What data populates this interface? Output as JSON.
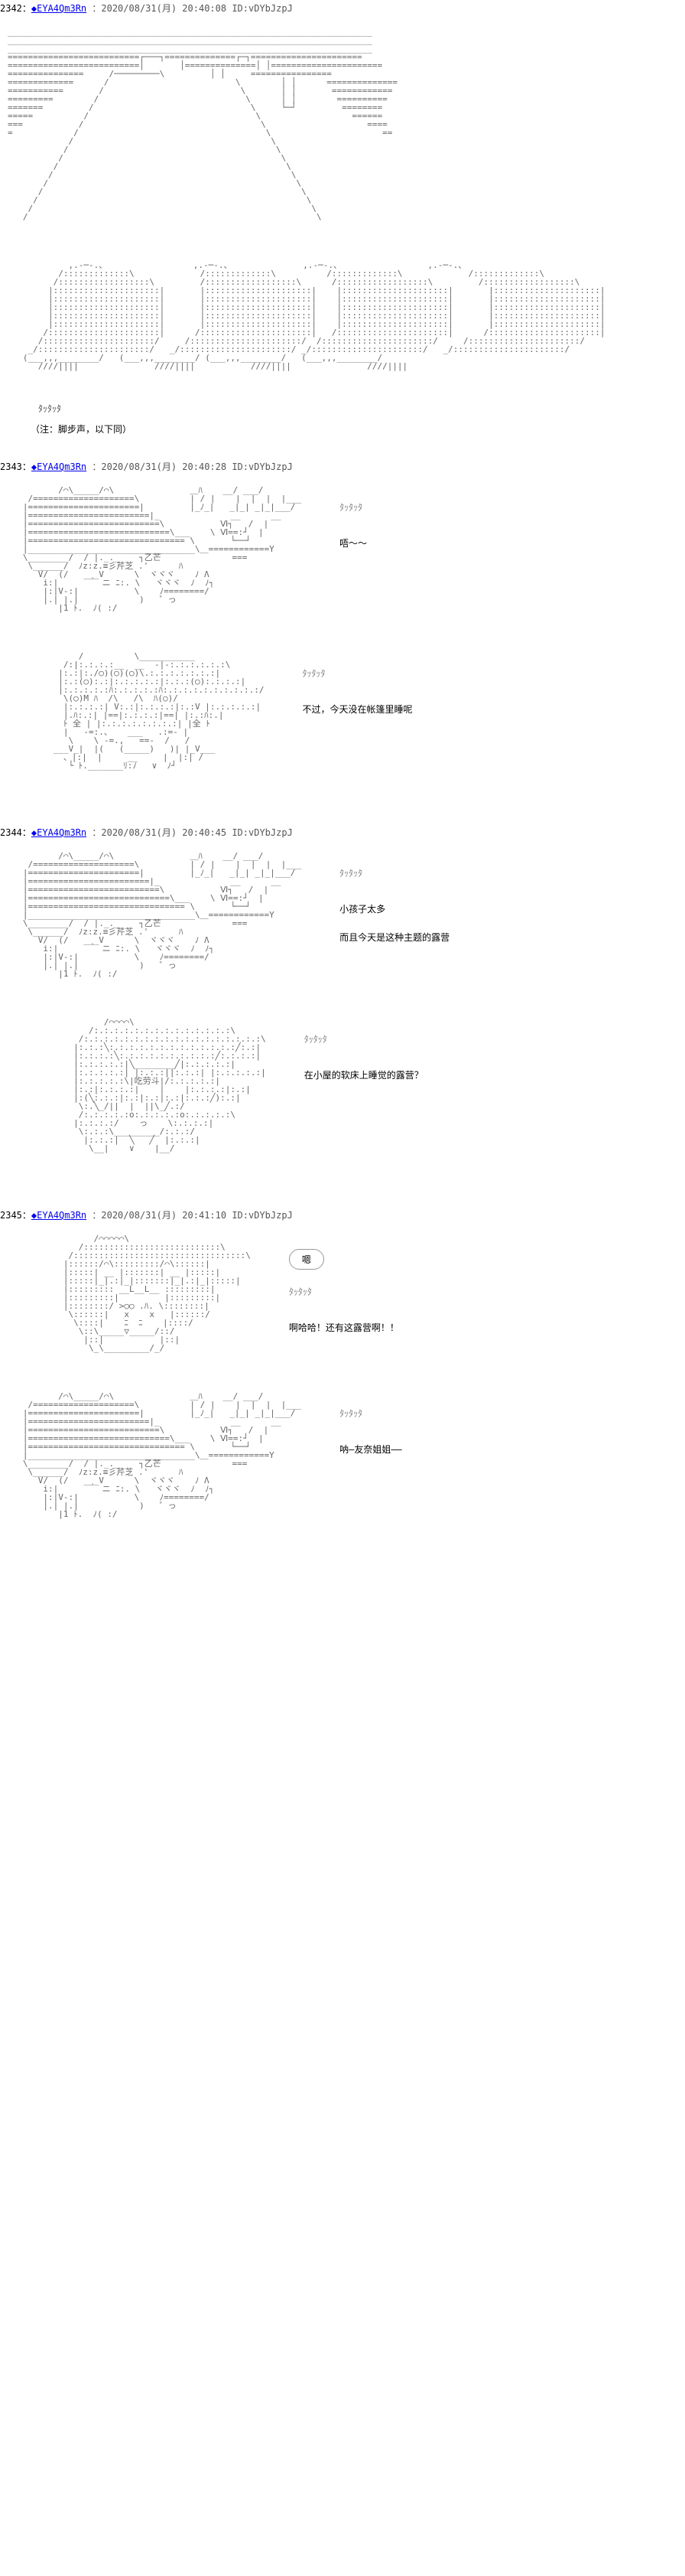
{
  "trip": "◆EYA4Qm3Rn",
  "posts": [
    {
      "num": "2342",
      "date": "2020/08/31(月) 20:40:08",
      "id": "ID:vDYbJzpJ",
      "panels": [
        {
          "aa_key": "hallway",
          "side": []
        },
        {
          "aa_key": "feet",
          "side": [],
          "sfx": "ﾀｯﾀｯﾀ",
          "note": "（注：脚步声，以下同）"
        }
      ]
    },
    {
      "num": "2343",
      "date": "2020/08/31(月) 20:40:28",
      "id": "ID:vDYbJzpJ",
      "panels": [
        {
          "aa_key": "yuna_side1",
          "side_sfx": "ﾀｯﾀｯﾀ",
          "side_lines": [
            "唔～～"
          ]
        },
        {
          "aa_key": "yuna_think",
          "side_sfx": "ﾀｯﾀｯﾀ",
          "side_lines": [
            "不过，今天没在帐篷里睡呢"
          ]
        }
      ]
    },
    {
      "num": "2344",
      "date": "2020/08/31(月) 20:40:45",
      "id": "ID:vDYbJzpJ",
      "panels": [
        {
          "aa_key": "yuna_side1",
          "side_sfx": "ﾀｯﾀｯﾀ",
          "side_lines": [
            "小孩子太多",
            "而且今天是这种主题的露营"
          ]
        },
        {
          "aa_key": "yuna_front",
          "side_sfx": "ﾀｯﾀｯﾀ",
          "side_lines": [
            "在小屋的软床上睡觉的露营？"
          ]
        }
      ]
    },
    {
      "num": "2345",
      "date": "2020/08/31(月) 20:41:10",
      "id": "ID:vDYbJzpJ",
      "panels": [
        {
          "aa_key": "yuna_happy",
          "side_bubble": "嗯",
          "side_sfx": "ﾀｯﾀｯﾀ",
          "side_lines": [
            "啊哈哈！还有这露营啊！！"
          ]
        },
        {
          "aa_key": "yuna_side1",
          "side_sfx": "ﾀｯﾀｯﾀ",
          "side_lines": [
            "呐―友奈姐姐――"
          ]
        }
      ]
    }
  ],
  "aa": {
    "hallway": "________________________________________________________________________\n________________________________________________________________________\n________________________________________________________________________\n==========================┌───┐==============┌─┐======================\n==========================│       │==============│ │======================\n===============     /─────────\\         │ │     ================\n=============      /                         \\        │ │      ==============\n===========       /                           \\       │ │       ============\n=========        /                             \\      │ │        ==========\n=======         /                               \\     └─┘         ========\n=====          /                                 \\                  ======\n===           /                                   \\                    ====\n=            /                                     \\                      ==\n            /                                       \\                       \n           /                                         \\                      \n          /                                           \\                     \n         /                                             \\                    \n        /                                               \\                   \n       /                                                 \\                  \n      /                                                   \\                 \n     /                                                     \\                \n    /                                                       \\               \n   /                                                         \\              ",
    "feet": "            ,.-─-.、                 ,.-─-.、              ,.-─-.、                 ,.-─-.、\n          /:::::::::::::\\             /:::::::::::::\\          /:::::::::::::\\             /:::::::::::::\\\n         /::::::::::::::::::\\         /::::::::::::::::::\\      /::::::::::::::::::\\         /::::::::::::::::::\\\n        |:::::::::::::::::::::|       |:::::::::::::::::::::|    |:::::::::::::::::::::|       |:::::::::::::::::::::|\n        |:::::::::::::::::::::|       |:::::::::::::::::::::|    |:::::::::::::::::::::|       |:::::::::::::::::::::|\n        |:::::::::::::::::::::|       |:::::::::::::::::::::|    |:::::::::::::::::::::|       |:::::::::::::::::::::|\n        |:::::::::::::::::::::|       |:::::::::::::::::::::|    |:::::::::::::::::::::|       |:::::::::::::::::::::|\n        |:::::::::::::::::::::|       |:::::::::::::::::::::|    |:::::::::::::::::::::|       |:::::::::::::::::::::|\n       /::::::::::::::::::::::|      /::::::::::::::::::::::|   /::::::::::::::::::::::|      /::::::::::::::::::::::|\n      /::::::::::::::::::::::/     /::::::::::::::::::::::/  /::::::::::::::::::::::/     /::::::::::::::::::::::/\n    _/::::::::::::::::::::::/   _/::::::::::::::::::::::/ _/::::::::::::::::::::::/   _/::::::::::::::::::::::/\n   (___,,,________/   (___,,,________/ (___,,,________/   (___,,,________/\n      ////||||               ////||||           ////||||               ////||||",
    "yuna_side1": "          /⌒\\_____/⌒\\               ＿ﾊ    __/ ___/\n    /====================\\          | / |    |  |  |  |___\n   |======================|         |_ﾉ_|   _|_| _|_|___/\n   |========================|_              __      __\n   |==========================\\           Ⅵ┐   /  |\n   |============================\\___    \\ Ⅵ==:┘  |\n   |=============================== \\       └──┘\n   |_________________________________\\＿============Y\n   \\________/  / |._._    ┐乙芒              ===\n    \\______/  ﾉz:z.≡彡芹芝 .'      ﾊ\n      V/  (/   ___V      \\  ヾヾヾ    ﾉ Λ\n       i:|      ｀ ニ ﾆ:. \\   ヾヾヾ  ﾉ  ﾉ┐\n       |:|V-:|           \\    ﾉ========/\n       |.| |.|            )   ゜っ\n          |1 ﾄ.  ﾉ( :/",
    "yuna_think": "              /          \\___________\n           /:|:.:.:.:__  __  -|-:.:.:.:.:.:\\\n          |:.:|:./○)(○)(○)\\.:.:.:.:.:.:.:|\n          |:.:(○):.:|:.:.:.:.:|:.:.:(○):.:.:.:|\n          |:.:.:.:.:ﾊ:.:.:.:.:ﾊ:.:.:.:.:.:.:.:.:.:/\n           \\(○)M ﾊ  /\\   /\\  ﾊ(○)/\n           |:.:.:.:| V:.:|:.:.:.:|:.:V |:.:.:.:.:|\n           |.ﾊ:.:| |==|:.:.:.:|==| |:.:ﾊ:.|\n           ﾄ 全 | |:.:.:.:.:.:.:.:| |全 ﾄ\n           |   -=:.、   ___   .:=- |\n            \\    \\ -=.,   ==-  /   /\n         ___V_|  |(   (_____)   )| |_V___\n           、|:|  |     __     |  |:| /\n            └ ﾄ._______ﾘ:ﾉ   ∨  ﾉ┘",
    "yuna_front": "                   /⌒⌒⌒⌒\\\n                /:.:.:.:.:.:.:.:.:.:.:.:.:.:\\\n              /:.:.:.:.:.:.:.:.:.:.:.:.:.:.:.:.:.:\\\n             |:.:.:╲:.:.:.:.:.:.:.:.:.:.:.:.:╱:.:|\n             |:.:.:.:╲:.:.:.:.:.:.:.:.:.:╱:.:.:.:|\n             |:.:.:.:.:|╲________╱|:.:.:.:.:|\n             |:.:.:.:.:| |:.:.:||:.:.:| |:.:.:.:.:|\n             |:.:.:.:.:\\|吃劳斗|/:.:.:.:.:|\n             |:.:|:.:.:.:|    |    |:.:.:.:|:.:|\n             |:(╲:.:.:|:.:|:.:|:.:|:.:.:╱):.:|\n              \\:.╲_/||  |  ||\\_╱.:/\n              /:.:.:.:.:o:.:.:.:.:o:.:.:.:.:\\\n             |:.:.:.:/    っ    \\:.:.:.:|\n              \\:.:.:\\_________/:.:.:/\n               |:.:.:|  ╲   ╱  |:.:.:|\n                \\__|    ∨    |__/",
    "yuna_happy": "                 /⌒⌒⌒⌒⌒\\\n              /:::::::::::::::::::::::::::\\\n            /::::::::::::::::::::::::::::::::::\\\n           |::::::/⌒\\:::::::::/⌒\\::::::|\n           |:::::| __ |:::::::| __ |:::::|\n           |:::::|_|.:|_|:::::::|_|.:|_|:::::|\n           |::::::::: __L__L__ :::::::::|\n           |:::::::::|         |:::::::::|\n           |::::::::/ >○○ .ﾊ. \\::::::::|\n            \\::::::|   x    x   |::::::/\n             \\::::|    ﾆ  ﾆ    |::::/\n              \\::\\_____▽_____/::/\n               |::|           |::|\n                \\_\\_________/_/"
  }
}
